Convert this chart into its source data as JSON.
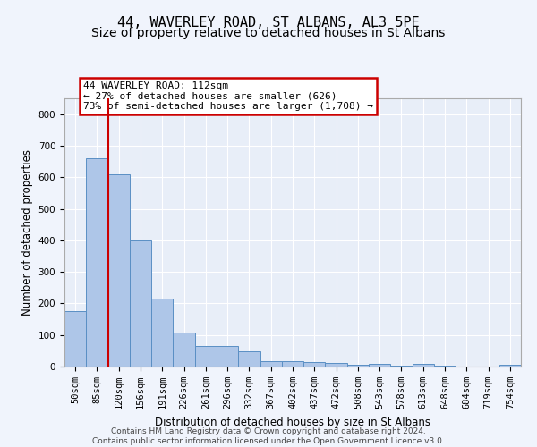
{
  "title": "44, WAVERLEY ROAD, ST ALBANS, AL3 5PE",
  "subtitle": "Size of property relative to detached houses in St Albans",
  "xlabel": "Distribution of detached houses by size in St Albans",
  "ylabel": "Number of detached properties",
  "footer_line1": "Contains HM Land Registry data © Crown copyright and database right 2024.",
  "footer_line2": "Contains public sector information licensed under the Open Government Licence v3.0.",
  "bar_labels": [
    "50sqm",
    "85sqm",
    "120sqm",
    "156sqm",
    "191sqm",
    "226sqm",
    "261sqm",
    "296sqm",
    "332sqm",
    "367sqm",
    "402sqm",
    "437sqm",
    "472sqm",
    "508sqm",
    "543sqm",
    "578sqm",
    "613sqm",
    "648sqm",
    "684sqm",
    "719sqm",
    "754sqm"
  ],
  "bar_values": [
    175,
    660,
    610,
    400,
    215,
    108,
    65,
    65,
    47,
    17,
    16,
    15,
    12,
    7,
    9,
    2,
    8,
    2,
    0,
    0,
    6
  ],
  "bar_color": "#aec6e8",
  "bar_edge_color": "#5a8fc4",
  "property_label": "44 WAVERLEY ROAD: 112sqm",
  "annotation_line1": "← 27% of detached houses are smaller (626)",
  "annotation_line2": "73% of semi-detached houses are larger (1,708) →",
  "vline_color": "#cc0000",
  "annotation_box_color": "#cc0000",
  "vline_position": 1.5,
  "ylim": [
    0,
    850
  ],
  "yticks": [
    0,
    100,
    200,
    300,
    400,
    500,
    600,
    700,
    800
  ],
  "background_color": "#f0f4fc",
  "plot_bg_color": "#e8eef8",
  "grid_color": "#ffffff",
  "title_fontsize": 11,
  "subtitle_fontsize": 10,
  "axis_label_fontsize": 8.5,
  "tick_fontsize": 7.5,
  "annotation_fontsize": 8
}
